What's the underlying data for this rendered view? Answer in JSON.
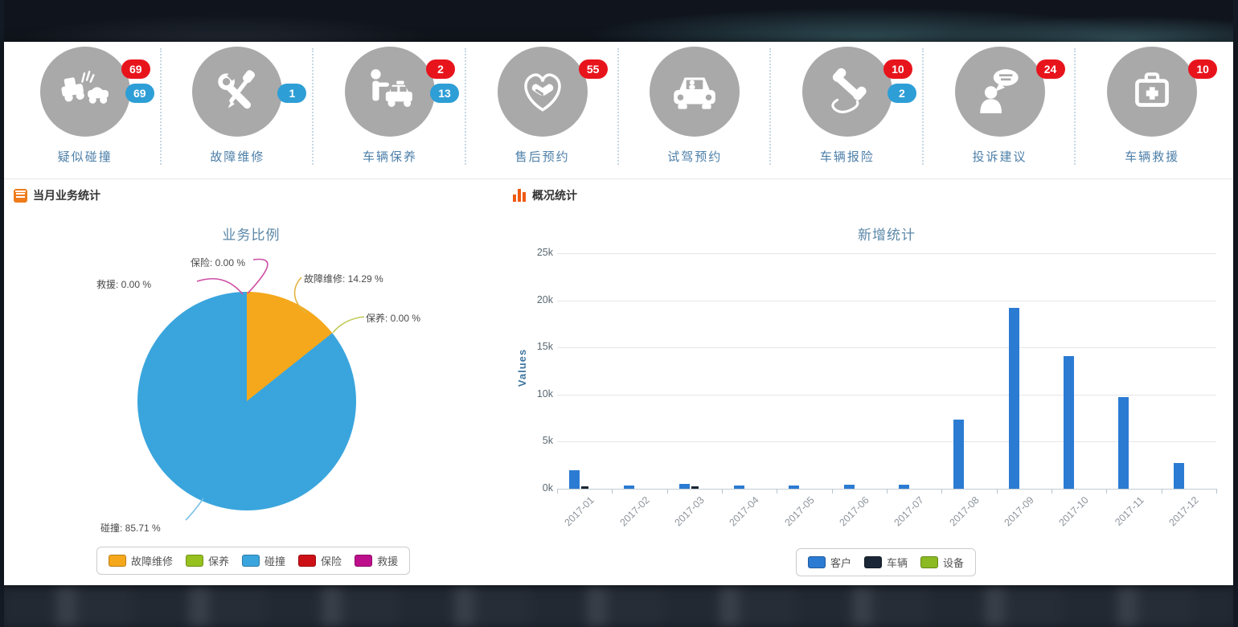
{
  "page": {
    "background": "#141a23",
    "panel_background": "#ffffff"
  },
  "services": {
    "badge_colors": {
      "red": "#e8141c",
      "blue": "#2e9ed6"
    },
    "circle_color": "#a9a9a9",
    "items": [
      {
        "label": "疑似碰撞",
        "icon": "car-collision-icon",
        "badges": [
          {
            "value": "69",
            "type": "red"
          },
          {
            "value": "69",
            "type": "blue"
          }
        ]
      },
      {
        "label": "故障维修",
        "icon": "repair-tools-icon",
        "badges": [
          {
            "value": "1",
            "type": "blue"
          }
        ]
      },
      {
        "label": "车辆保养",
        "icon": "person-car-icon",
        "badges": [
          {
            "value": "2",
            "type": "red"
          },
          {
            "value": "13",
            "type": "blue"
          }
        ]
      },
      {
        "label": "售后预约",
        "icon": "handshake-heart-icon",
        "badges": [
          {
            "value": "55",
            "type": "red"
          }
        ]
      },
      {
        "label": "试驾预约",
        "icon": "car-front-icon",
        "badges": []
      },
      {
        "label": "车辆报险",
        "icon": "phone-handset-icon",
        "badges": [
          {
            "value": "10",
            "type": "red"
          },
          {
            "value": "2",
            "type": "blue"
          }
        ]
      },
      {
        "label": "投诉建议",
        "icon": "person-chat-icon",
        "badges": [
          {
            "value": "24",
            "type": "red"
          }
        ]
      },
      {
        "label": "车辆救援",
        "icon": "first-aid-kit-icon",
        "badges": [
          {
            "value": "10",
            "type": "red"
          }
        ]
      }
    ]
  },
  "sections": {
    "left_header": "当月业务统计",
    "right_header": "概况统计"
  },
  "chart_data": [
    {
      "type": "pie",
      "title": "业务比例",
      "slices": [
        {
          "label": "故障维修",
          "value": 14.29,
          "color": "#f5a81c"
        },
        {
          "label": "保养",
          "value": 0.0,
          "color": "#96c11f"
        },
        {
          "label": "碰撞",
          "value": 85.71,
          "color": "#3aa5dd"
        },
        {
          "label": "保险",
          "value": 0.0,
          "color": "#cc1016"
        },
        {
          "label": "救援",
          "value": 0.0,
          "color": "#bd0f8c"
        }
      ],
      "callouts": [
        {
          "text": "保险: 0.00 %"
        },
        {
          "text": "救援: 0.00 %"
        },
        {
          "text": "故障维修: 14.29 %"
        },
        {
          "text": "保养: 0.00 %"
        },
        {
          "text": "碰撞: 85.71 %"
        }
      ],
      "legend": [
        "故障维修",
        "保养",
        "碰撞",
        "保险",
        "救援"
      ],
      "legend_position": "bottom"
    },
    {
      "type": "bar",
      "title": "新增统计",
      "ylabel": "Values",
      "ylim": [
        0,
        25000
      ],
      "yticks": [
        "25k",
        "20k",
        "15k",
        "10k",
        "5k",
        "0k"
      ],
      "grid": true,
      "categories": [
        "2017-01",
        "2017-02",
        "2017-03",
        "2017-04",
        "2017-05",
        "2017-06",
        "2017-07",
        "2017-08",
        "2017-09",
        "2017-10",
        "2017-11",
        "2017-12"
      ],
      "series": [
        {
          "name": "客户",
          "color": "#2b7bd3",
          "values": [
            2000,
            350,
            550,
            300,
            300,
            400,
            450,
            7300,
            19200,
            14100,
            9700,
            2700
          ]
        },
        {
          "name": "车辆",
          "color": "#1b2736",
          "values": [
            250,
            0,
            250,
            0,
            0,
            0,
            0,
            0,
            0,
            0,
            0,
            0
          ]
        },
        {
          "name": "设备",
          "color": "#8ab921",
          "values": [
            0,
            0,
            0,
            0,
            0,
            0,
            0,
            0,
            0,
            0,
            0,
            0
          ]
        }
      ],
      "legend_position": "bottom"
    }
  ]
}
